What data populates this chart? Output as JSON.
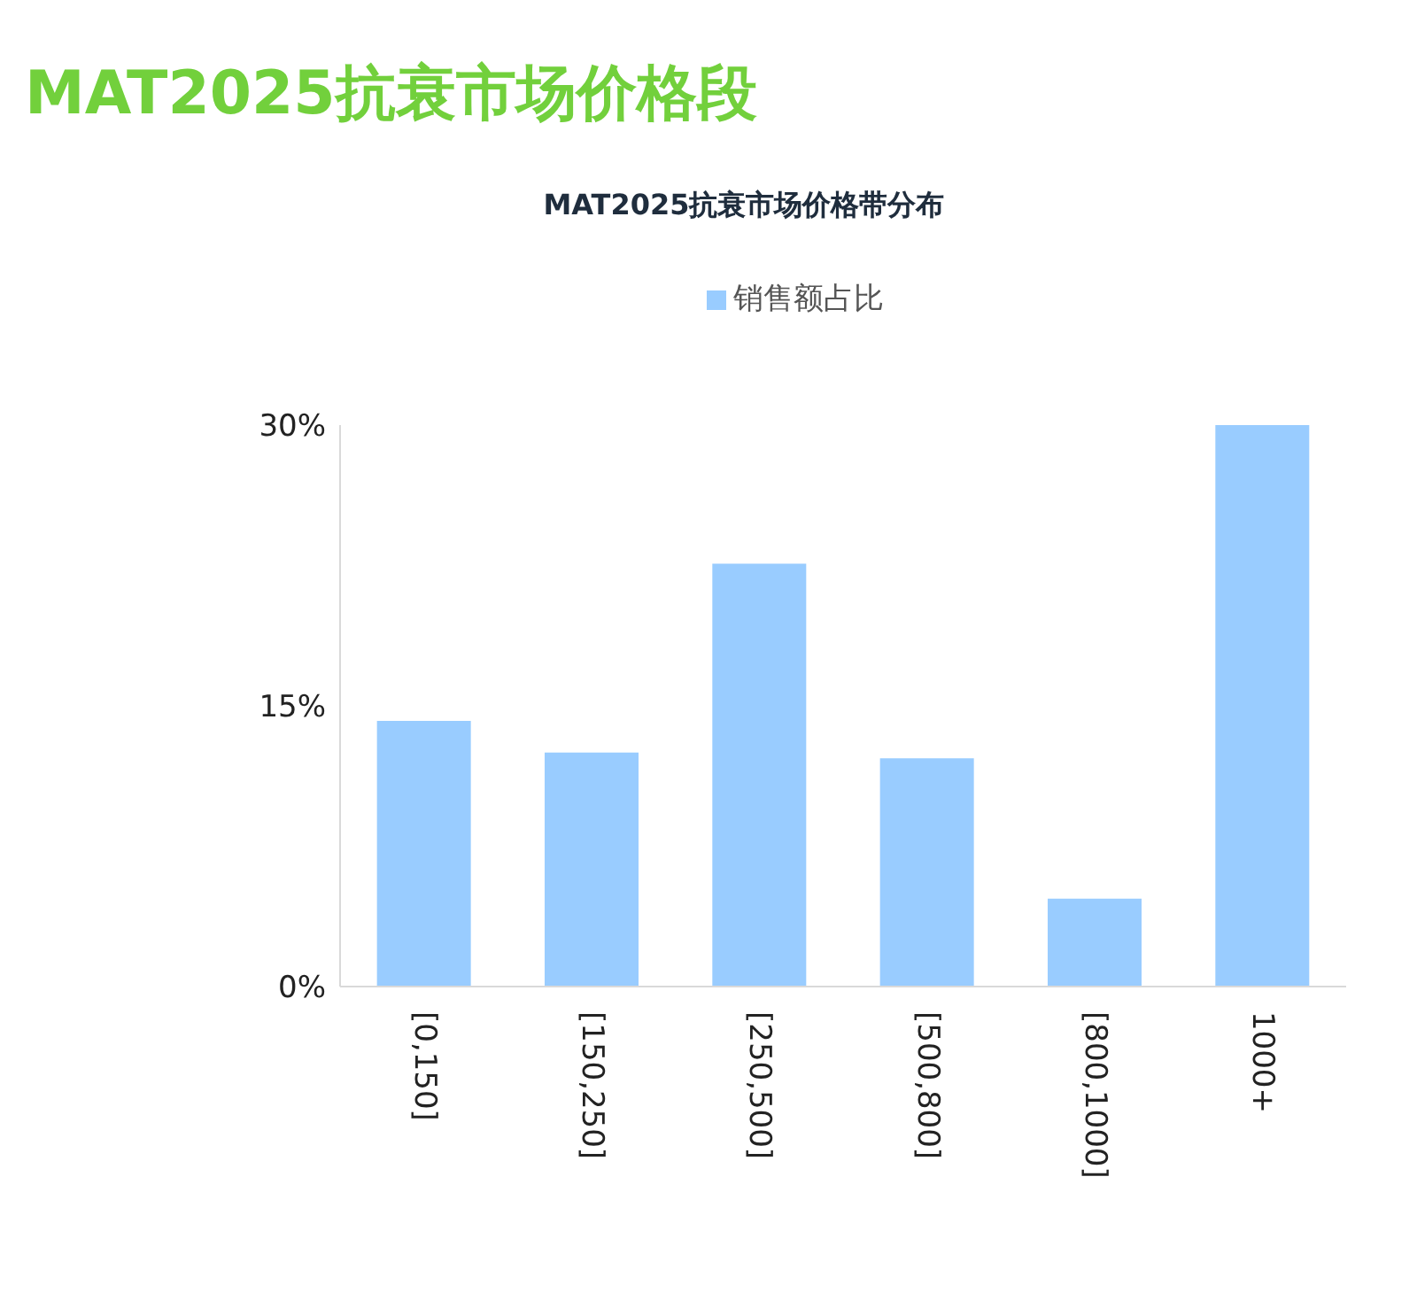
{
  "chart_data": {
    "type": "bar",
    "title": "MAT2025抗衰市场价格段",
    "subtitle": "MAT2025抗衰市场价格带分布",
    "categories": [
      "[0,150]",
      "[150,250]",
      "[250,500]",
      "[500,800]",
      "[800,1000]",
      "1000+"
    ],
    "series": [
      {
        "name": "销售额占比",
        "color": "#99ccff",
        "values": [
          14.2,
          12.5,
          22.6,
          12.2,
          4.7,
          30
        ]
      }
    ],
    "ylim": [
      0,
      30
    ],
    "yticks": [
      {
        "value": 0,
        "label": "0%"
      },
      {
        "value": 15,
        "label": "15%"
      },
      {
        "value": 30,
        "label": "30%"
      }
    ],
    "grid": false,
    "legend": "top"
  }
}
